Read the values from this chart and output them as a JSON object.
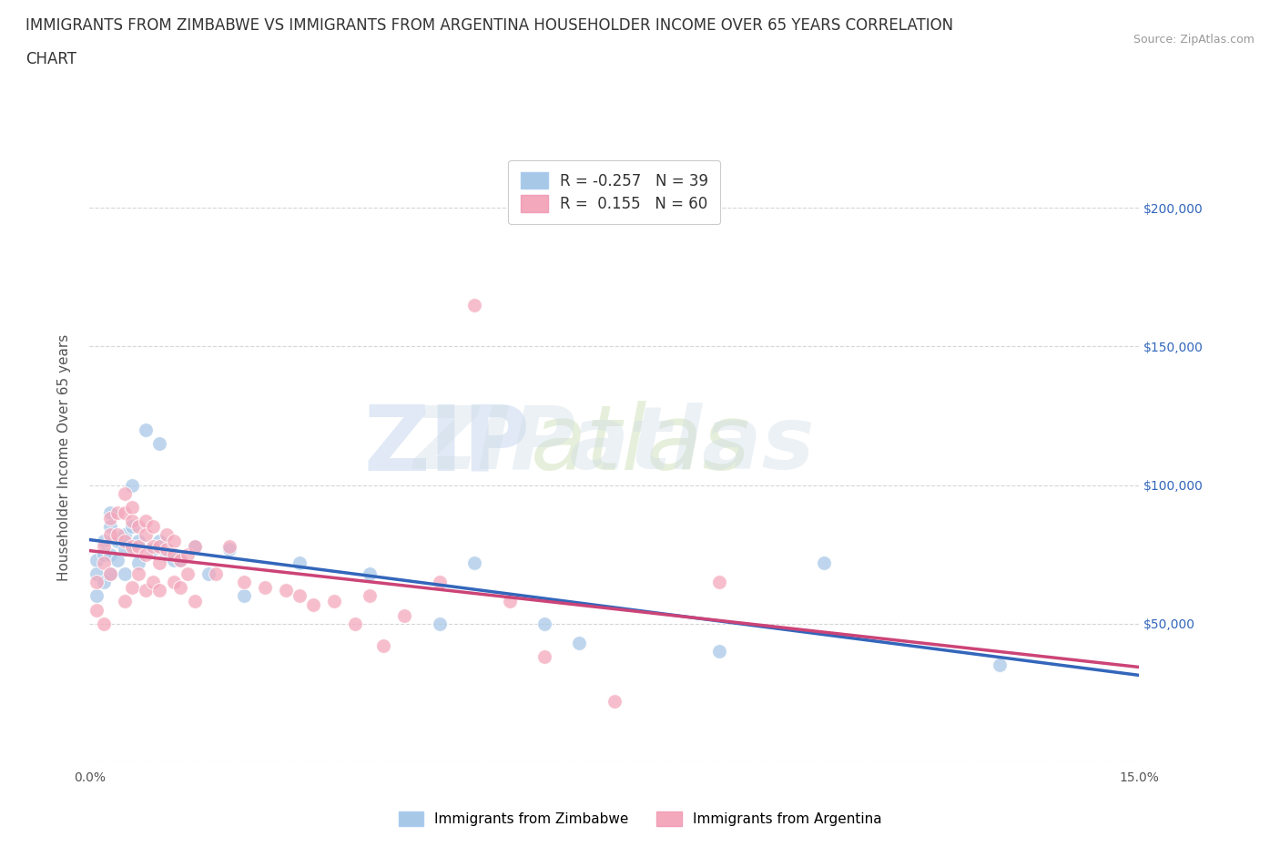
{
  "title_line1": "IMMIGRANTS FROM ZIMBABWE VS IMMIGRANTS FROM ARGENTINA HOUSEHOLDER INCOME OVER 65 YEARS CORRELATION",
  "title_line2": "CHART",
  "source_text": "Source: ZipAtlas.com",
  "ylabel": "Householder Income Over 65 years",
  "xlim": [
    0,
    0.15
  ],
  "ylim": [
    0,
    220000
  ],
  "watermark_zip": "ZIP",
  "watermark_atlas": "atlas",
  "zimbabwe_color": "#a8c8e8",
  "argentina_color": "#f4a8bc",
  "zimbabwe_line_color": "#3366bb",
  "argentina_line_color": "#cc4477",
  "R_zimbabwe": -0.257,
  "N_zimbabwe": 39,
  "R_argentina": 0.155,
  "N_argentina": 60,
  "zimbabwe_x": [
    0.001,
    0.001,
    0.001,
    0.002,
    0.002,
    0.002,
    0.003,
    0.003,
    0.003,
    0.003,
    0.004,
    0.004,
    0.005,
    0.005,
    0.005,
    0.006,
    0.006,
    0.007,
    0.007,
    0.008,
    0.009,
    0.01,
    0.01,
    0.011,
    0.012,
    0.013,
    0.015,
    0.017,
    0.02,
    0.022,
    0.03,
    0.04,
    0.05,
    0.055,
    0.065,
    0.07,
    0.09,
    0.105,
    0.13
  ],
  "zimbabwe_y": [
    73000,
    68000,
    60000,
    80000,
    75000,
    65000,
    90000,
    85000,
    75000,
    68000,
    80000,
    73000,
    82000,
    77000,
    68000,
    100000,
    85000,
    80000,
    72000,
    120000,
    77000,
    115000,
    80000,
    75000,
    73000,
    73000,
    78000,
    68000,
    77000,
    60000,
    72000,
    68000,
    50000,
    72000,
    50000,
    43000,
    40000,
    72000,
    35000
  ],
  "argentina_x": [
    0.001,
    0.001,
    0.002,
    0.002,
    0.002,
    0.003,
    0.003,
    0.003,
    0.004,
    0.004,
    0.005,
    0.005,
    0.005,
    0.005,
    0.006,
    0.006,
    0.006,
    0.006,
    0.007,
    0.007,
    0.007,
    0.008,
    0.008,
    0.008,
    0.008,
    0.009,
    0.009,
    0.009,
    0.01,
    0.01,
    0.01,
    0.011,
    0.011,
    0.012,
    0.012,
    0.012,
    0.013,
    0.013,
    0.014,
    0.014,
    0.015,
    0.015,
    0.018,
    0.02,
    0.022,
    0.025,
    0.028,
    0.03,
    0.032,
    0.035,
    0.038,
    0.04,
    0.042,
    0.045,
    0.05,
    0.055,
    0.06,
    0.065,
    0.075,
    0.09
  ],
  "argentina_y": [
    65000,
    55000,
    78000,
    72000,
    50000,
    88000,
    82000,
    68000,
    90000,
    82000,
    97000,
    90000,
    80000,
    58000,
    92000,
    87000,
    78000,
    63000,
    85000,
    78000,
    68000,
    87000,
    82000,
    75000,
    62000,
    85000,
    78000,
    65000,
    78000,
    72000,
    62000,
    82000,
    77000,
    80000,
    75000,
    65000,
    73000,
    63000,
    75000,
    68000,
    78000,
    58000,
    68000,
    78000,
    65000,
    63000,
    62000,
    60000,
    57000,
    58000,
    50000,
    60000,
    42000,
    53000,
    65000,
    165000,
    58000,
    38000,
    22000,
    65000
  ],
  "background_color": "#ffffff",
  "grid_color": "#cccccc",
  "title_fontsize": 12,
  "axis_label_fontsize": 11,
  "tick_fontsize": 10,
  "legend_fontsize": 12
}
